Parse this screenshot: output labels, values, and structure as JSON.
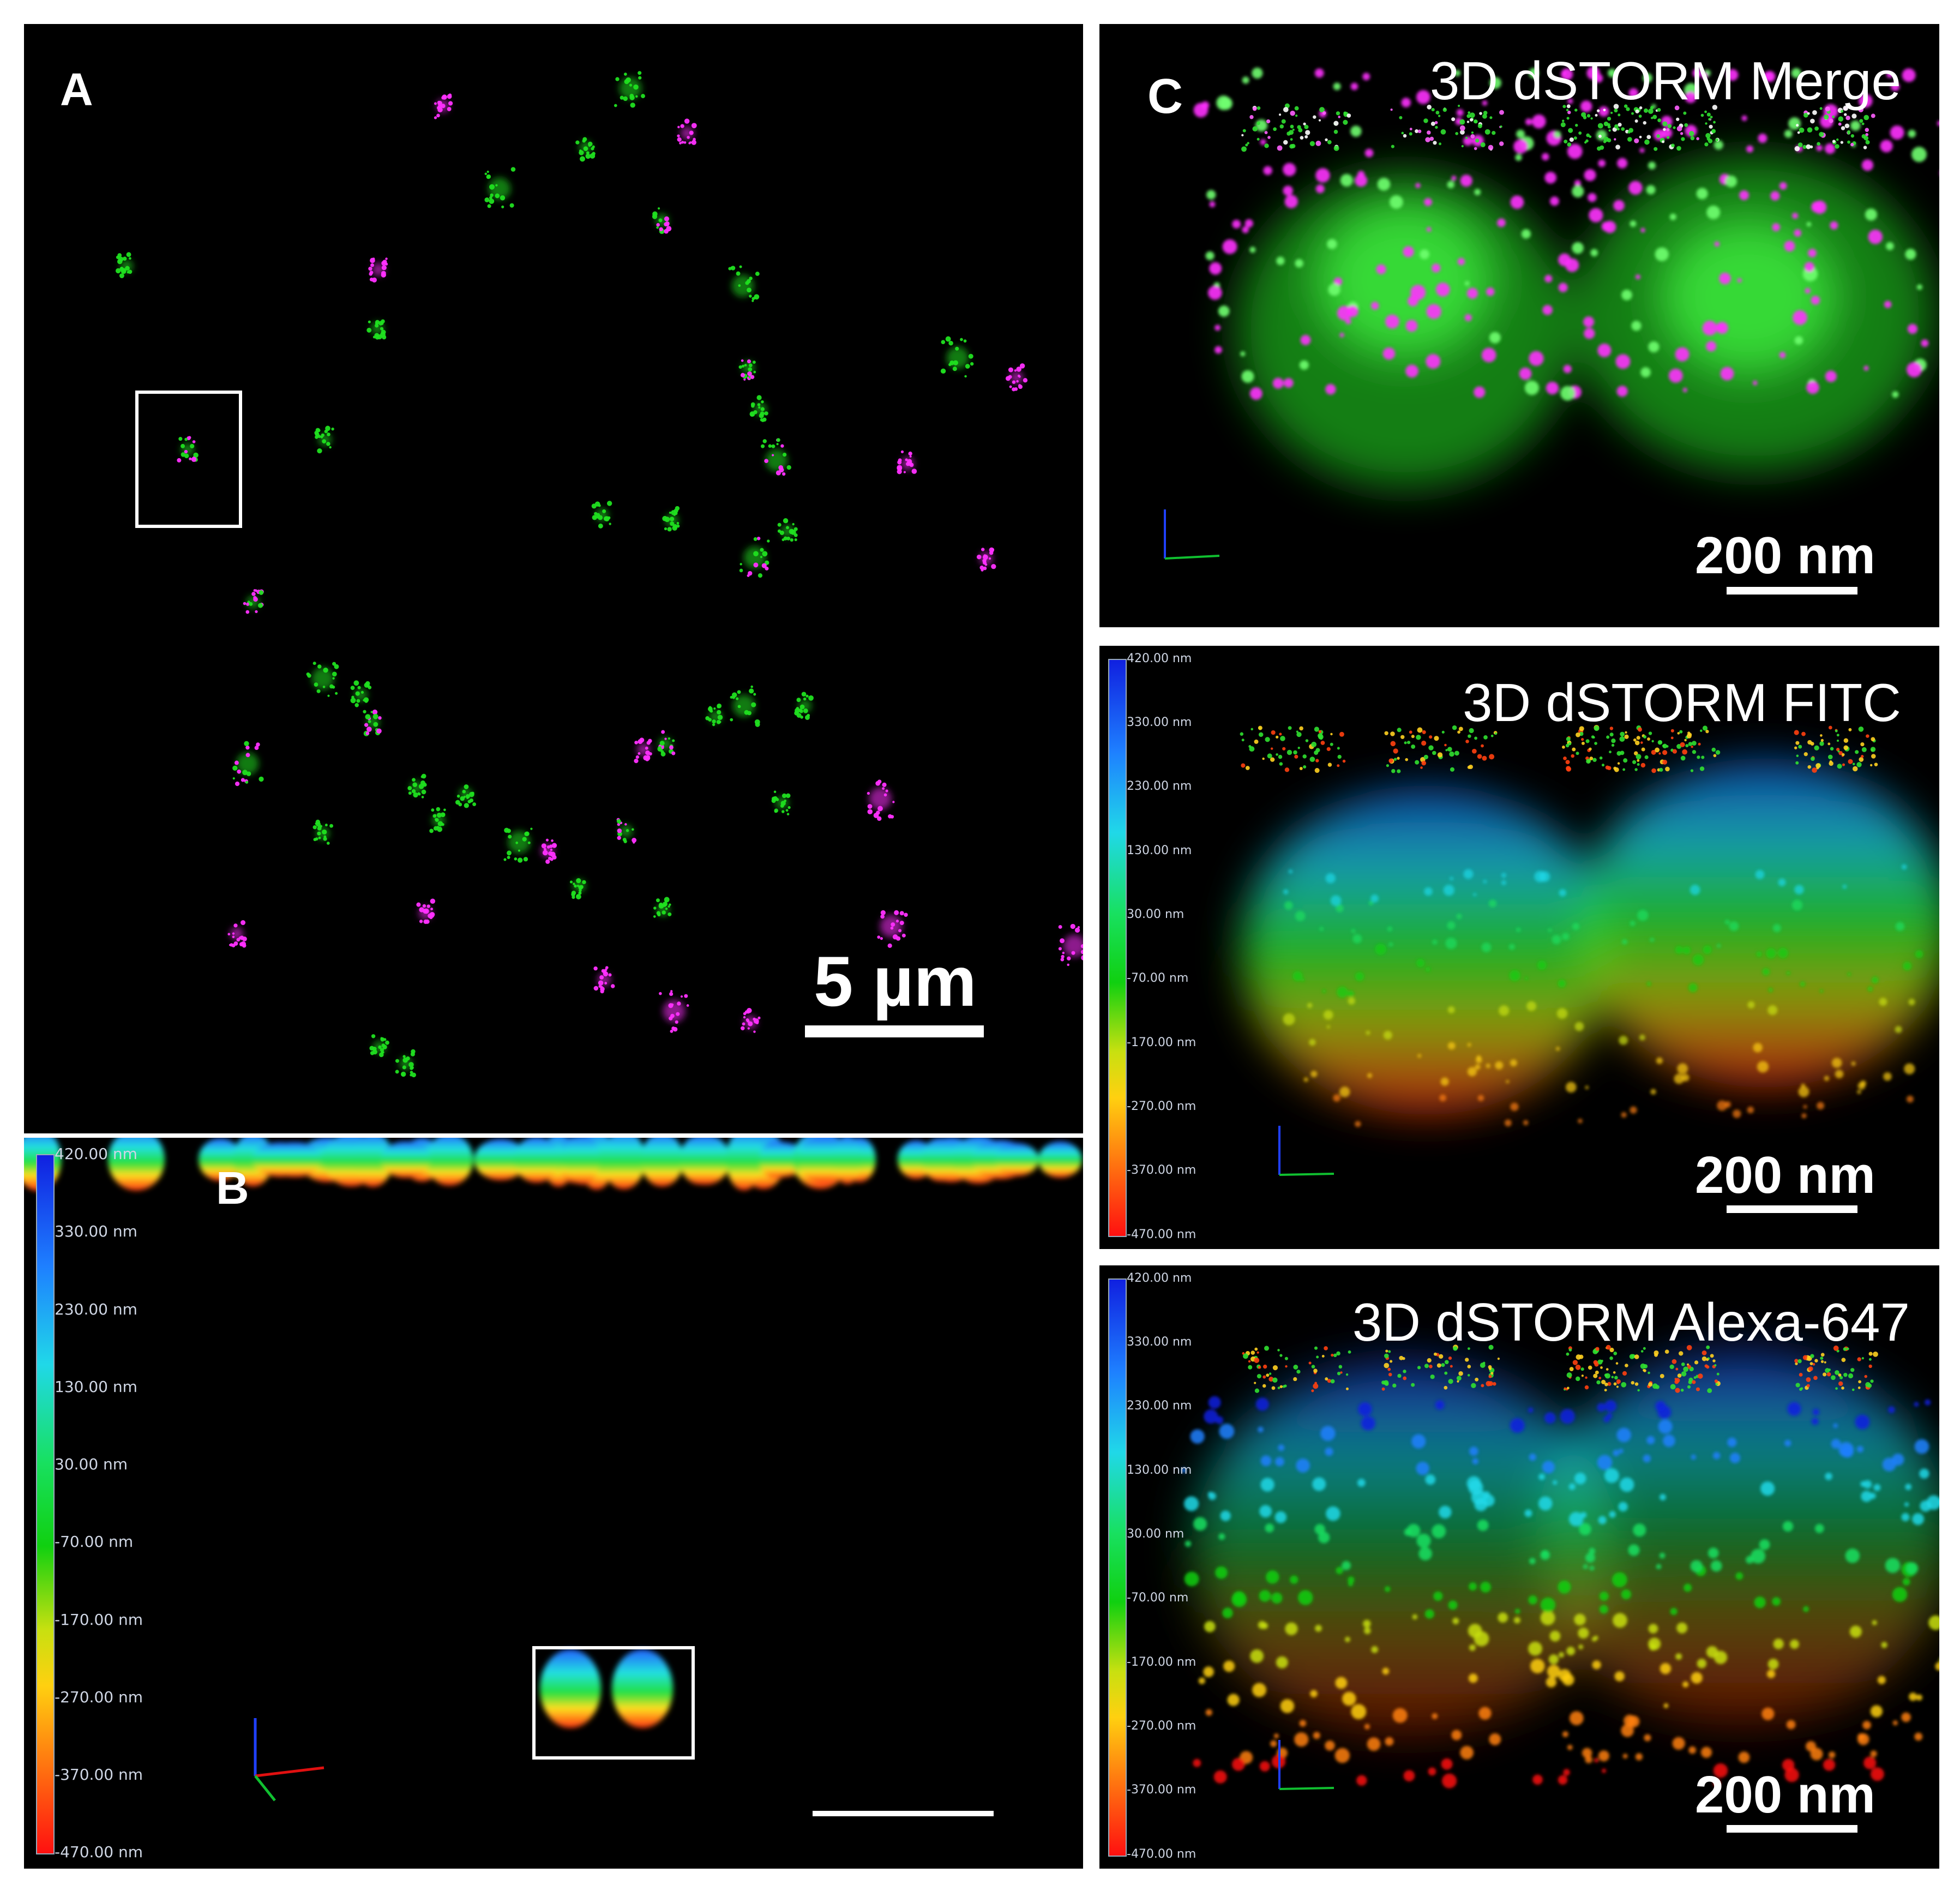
{
  "panels": {
    "a": {
      "letter": "A",
      "scale_label": "5 µm"
    },
    "b": {
      "letter": "B"
    },
    "c": {
      "letter": "C",
      "merge": {
        "title": "3D dSTORM Merge",
        "scale_label": "200 nm"
      },
      "fitc": {
        "title": "3D dSTORM FITC",
        "scale_label": "200 nm"
      },
      "alexa": {
        "title": "3D dSTORM Alexa-647",
        "scale_label": "200 nm"
      }
    }
  },
  "colorbar_ticks": [
    "420.00 nm",
    "330.00 nm",
    "230.00 nm",
    "130.00 nm",
    "30.00 nm",
    "-70.00 nm",
    "-170.00 nm",
    "-270.00 nm",
    "-370.00 nm",
    "-470.00 nm"
  ],
  "colors": {
    "green": "#20e020",
    "magenta": "#ff30ff",
    "depth_scale": [
      "#1020e0",
      "#1e80ff",
      "#20d8e8",
      "#18e060",
      "#10d010",
      "#c8e010",
      "#ffd010",
      "#ff8010",
      "#ff1010"
    ]
  },
  "icons": [
    "axis-triad-icon"
  ]
}
